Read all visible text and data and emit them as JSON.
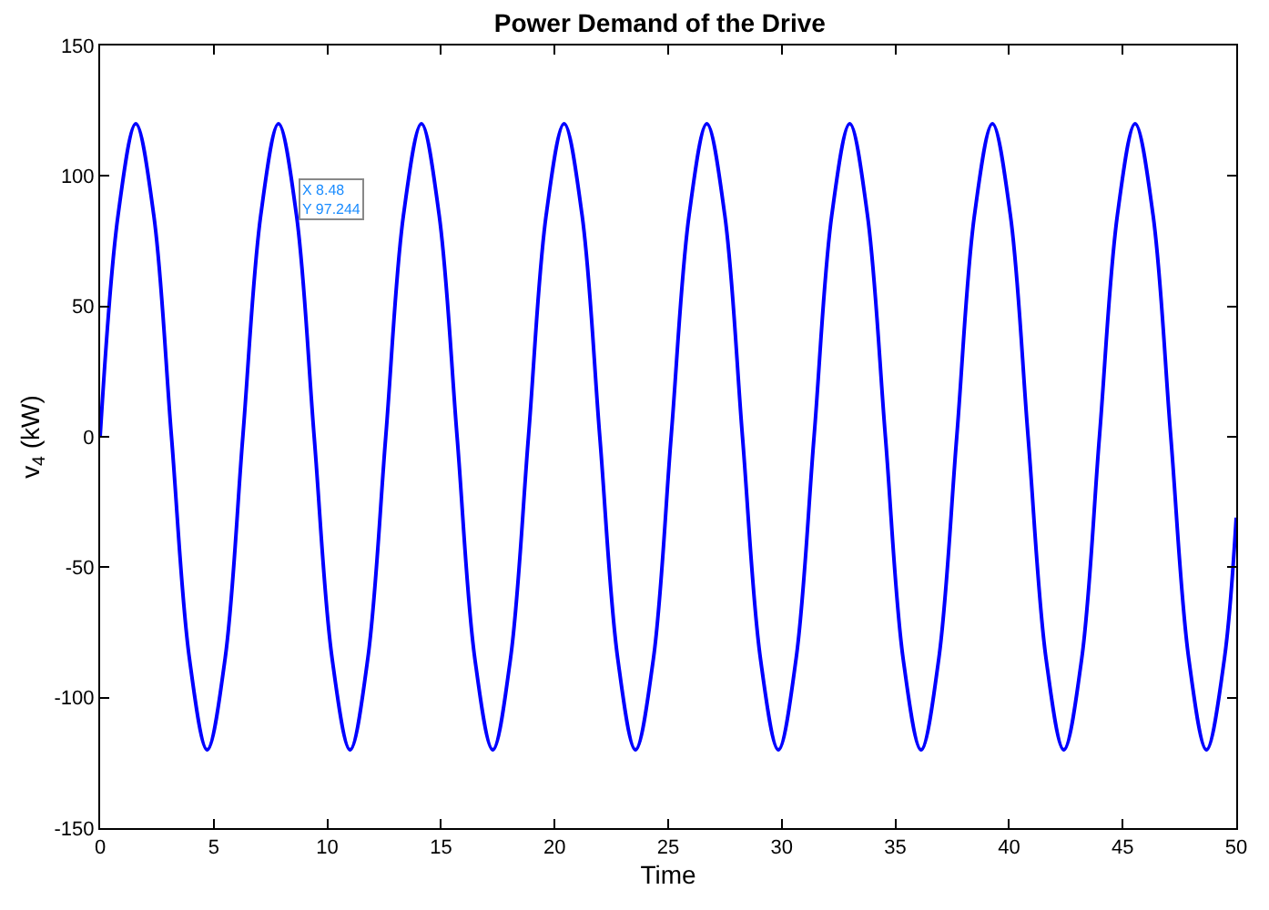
{
  "chart_data": {
    "type": "line",
    "title": "Power Demand of the Drive",
    "xlabel": "Time",
    "ylabel": "v$_{4}$ (kW)",
    "x": [
      0,
      0.79,
      1.57,
      2.36,
      3.14,
      3.93,
      4.71,
      5.5,
      6.28,
      7.07,
      7.85,
      8.64,
      9.42,
      10.21,
      11,
      11.78,
      12.57,
      13.35,
      14.14,
      14.92,
      15.71,
      16.49,
      17.28,
      18.06,
      18.85,
      19.63,
      20.42,
      21.21,
      21.99,
      22.78,
      23.56,
      24.35,
      25.13,
      25.92,
      26.7,
      27.49,
      28.27,
      29.06,
      29.85,
      30.63,
      31.42,
      32.2,
      32.99,
      33.77,
      34.56,
      35.34,
      36.13,
      36.91,
      37.7,
      38.48,
      39.27,
      40.06,
      40.84,
      41.63,
      42.41,
      43.2,
      43.98,
      44.77,
      45.55,
      46.34,
      47.12,
      47.91,
      48.69,
      49.48,
      50
    ],
    "series": [
      {
        "color": "#0000ff",
        "values": [
          0,
          85,
          120,
          85,
          0,
          -85,
          -120,
          -85,
          0,
          85,
          120,
          85,
          0,
          -85,
          -120,
          -85,
          0,
          85,
          120,
          85,
          0,
          -85,
          -120,
          -85,
          0,
          85,
          120,
          85,
          0,
          -85,
          -120,
          -85,
          0,
          85,
          120,
          85,
          0,
          -85,
          -120,
          -85,
          0,
          85,
          120,
          85,
          0,
          -85,
          -120,
          -85,
          0,
          85,
          120,
          85,
          0,
          -85,
          -120,
          -85,
          0,
          85,
          120,
          85,
          0,
          -85,
          -120,
          -85,
          -31
        ]
      }
    ],
    "annotations": [
      {
        "text": "X 8.48\nY 97.244",
        "x": 8.48,
        "y": 97.244
      }
    ],
    "xlim": [
      0,
      50
    ],
    "xticks": [
      0,
      5,
      10,
      15,
      20,
      25,
      30,
      35,
      40,
      45,
      50
    ],
    "ylim": [
      -150,
      150
    ],
    "yticks": [
      -150,
      -100,
      -50,
      0,
      50,
      100,
      150
    ],
    "legend": false,
    "marker": "none",
    "line_style": "solid"
  }
}
